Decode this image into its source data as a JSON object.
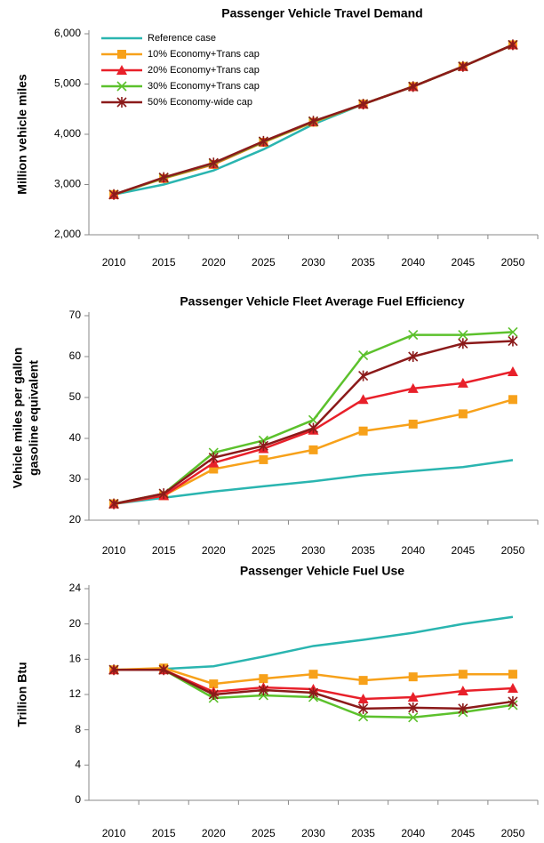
{
  "chart_data": [
    {
      "type": "line",
      "title": "Passenger Vehicle Travel Demand",
      "y_label": [
        "Million  vehicle miles"
      ],
      "categories": [
        "2010",
        "2015",
        "2020",
        "2025",
        "2030",
        "2035",
        "2040",
        "2045",
        "2050"
      ],
      "ylim": [
        2000,
        6000
      ],
      "yticks": [
        {
          "value": 2000,
          "label": "2,000"
        },
        {
          "value": 3000,
          "label": "3,000"
        },
        {
          "value": 4000,
          "label": "4,000"
        },
        {
          "value": 5000,
          "label": "5,000"
        },
        {
          "value": 6000,
          "label": "6,000"
        }
      ],
      "legend": "upper left",
      "series": [
        {
          "name": "Reference case",
          "color": "#2ab5b0",
          "marker": "none",
          "values": [
            2800,
            3000,
            3280,
            3700,
            4200,
            4600,
            4950,
            5350,
            5780
          ]
        },
        {
          "name": "10% Economy+Trans cap",
          "color": "#f7a11a",
          "marker": "square",
          "values": [
            2800,
            3120,
            3400,
            3840,
            4240,
            4600,
            4950,
            5350,
            5780
          ]
        },
        {
          "name": "20% Economy+Trans cap",
          "color": "#e8202a",
          "marker": "triangle",
          "values": [
            2800,
            3130,
            3410,
            3850,
            4250,
            4600,
            4950,
            5350,
            5780
          ]
        },
        {
          "name": "30% Economy+Trans cap",
          "color": "#5cc12c",
          "marker": "x",
          "values": [
            2800,
            3130,
            3420,
            3850,
            4250,
            4600,
            4950,
            5350,
            5780
          ]
        },
        {
          "name": "50% Economy-wide cap",
          "color": "#8b1a1a",
          "marker": "star",
          "values": [
            2800,
            3140,
            3430,
            3860,
            4260,
            4600,
            4950,
            5350,
            5780
          ]
        }
      ]
    },
    {
      "type": "line",
      "title": "Passenger Vehicle Fleet Average Fuel Efficiency",
      "y_label": [
        "Vehicle miles per gallon",
        "gasoline equivalent"
      ],
      "categories": [
        "2010",
        "2015",
        "2020",
        "2025",
        "2030",
        "2035",
        "2040",
        "2045",
        "2050"
      ],
      "ylim": [
        20,
        70
      ],
      "yticks": [
        20,
        30,
        40,
        50,
        60,
        70
      ],
      "series": [
        {
          "color": "#2ab5b0",
          "marker": "none",
          "values": [
            24,
            25.5,
            27,
            28.3,
            29.5,
            31,
            32,
            33,
            34.7
          ]
        },
        {
          "color": "#f7a11a",
          "marker": "square",
          "values": [
            24,
            26,
            32.5,
            34.8,
            37.2,
            41.8,
            43.5,
            46,
            49.5
          ]
        },
        {
          "color": "#e8202a",
          "marker": "triangle",
          "values": [
            24,
            26,
            34,
            37.5,
            42,
            49.5,
            52.2,
            53.5,
            56.3
          ]
        },
        {
          "color": "#5cc12c",
          "marker": "x",
          "values": [
            24,
            26.5,
            36.5,
            39.5,
            44.5,
            60.3,
            65.3,
            65.3,
            66
          ]
        },
        {
          "color": "#8b1a1a",
          "marker": "star",
          "values": [
            24,
            26.5,
            35.3,
            38.2,
            42.5,
            55.3,
            60,
            63.2,
            63.8
          ]
        }
      ]
    },
    {
      "type": "line",
      "title": "Passenger Vehicle Fuel Use",
      "y_label": [
        "Trillion Btu"
      ],
      "categories": [
        "2010",
        "2015",
        "2020",
        "2025",
        "2030",
        "2035",
        "2040",
        "2045",
        "2050"
      ],
      "ylim": [
        0,
        24
      ],
      "yticks": [
        0,
        4,
        8,
        12,
        16,
        20,
        24
      ],
      "series": [
        {
          "color": "#2ab5b0",
          "marker": "none",
          "values": [
            14.8,
            14.9,
            15.2,
            16.3,
            17.5,
            18.2,
            19,
            20,
            20.8
          ]
        },
        {
          "color": "#f7a11a",
          "marker": "square",
          "values": [
            14.8,
            15,
            13.2,
            13.8,
            14.3,
            13.6,
            14,
            14.3,
            14.3
          ]
        },
        {
          "color": "#e8202a",
          "marker": "triangle",
          "values": [
            14.8,
            14.8,
            12.3,
            12.8,
            12.6,
            11.5,
            11.7,
            12.4,
            12.7
          ]
        },
        {
          "color": "#5cc12c",
          "marker": "x",
          "values": [
            14.8,
            14.8,
            11.6,
            11.9,
            11.7,
            9.5,
            9.4,
            10,
            10.8
          ]
        },
        {
          "color": "#8b1a1a",
          "marker": "star",
          "values": [
            14.8,
            14.8,
            12,
            12.5,
            12.2,
            10.4,
            10.5,
            10.4,
            11.2
          ]
        }
      ]
    }
  ]
}
